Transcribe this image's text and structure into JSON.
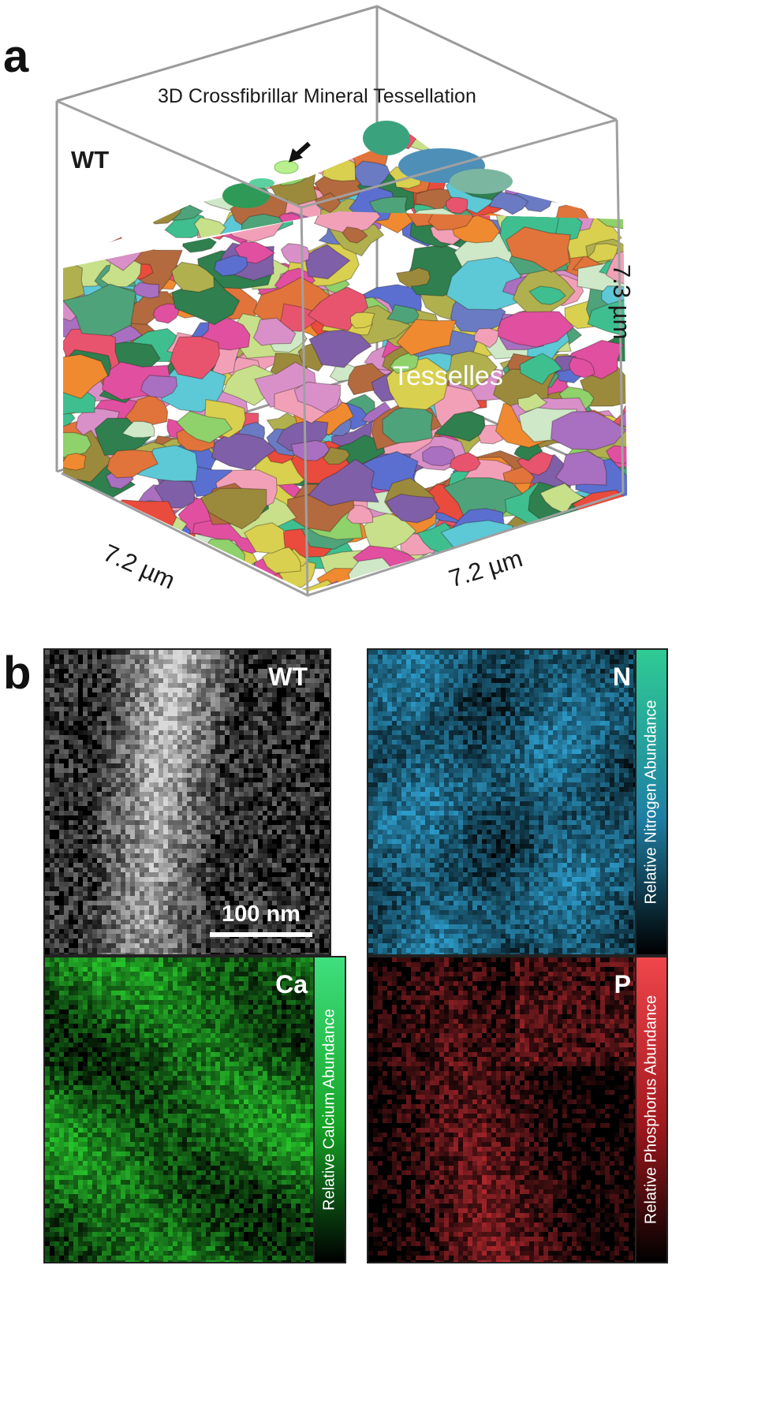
{
  "panel_a": {
    "letter": "a",
    "title": "3D Crossfibrillar Mineral Tessellation",
    "genotype_label": "WT",
    "structure_label": "Tesselles",
    "dim_left": "7.2 µm",
    "dim_right": "7.2 µm",
    "dim_height": "7.3 µm"
  },
  "panel_b": {
    "letter": "b",
    "maps": {
      "wt": {
        "label": "WT",
        "scalebar": "100 nm",
        "color": "#d8d8d8"
      },
      "n": {
        "label": "N",
        "color": "#2d9bc9"
      },
      "ca": {
        "label": "Ca",
        "color": "#27c22b"
      },
      "p": {
        "label": "P",
        "color": "#e2333a"
      }
    },
    "colorbars": {
      "nitrogen": {
        "label": "Relative Nitrogen Abundance",
        "top": "#2fcb94",
        "mid": "#1f7fa4",
        "bottom": "#000000"
      },
      "calcium": {
        "label": "Relative Calcium Abundance",
        "top": "#3fe07f",
        "mid": "#16a426",
        "bottom": "#000000"
      },
      "phosphorus": {
        "label": "Relative Phosphorus Abundance",
        "top": "#f0464b",
        "mid": "#a0181d",
        "bottom": "#000000"
      }
    }
  }
}
